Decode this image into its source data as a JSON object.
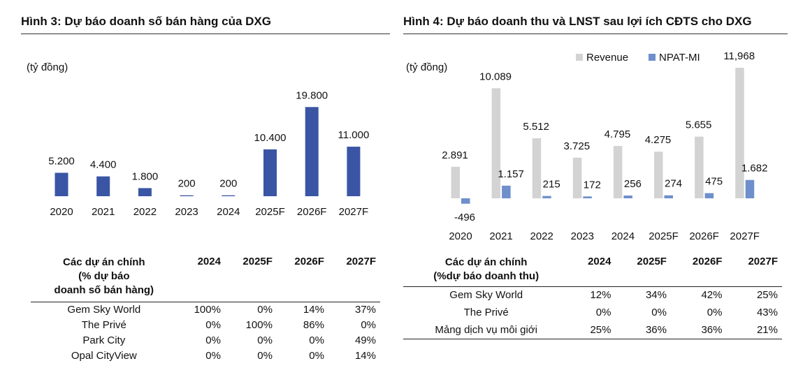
{
  "left": {
    "title": "Hình 3: Dự báo doanh số bán hàng của DXG",
    "unit": "(tỷ đồng)",
    "chart_data": {
      "type": "bar",
      "title": "Hình 3: Dự báo doanh số bán hàng của DXG",
      "ylabel": "(tỷ đồng)",
      "categories": [
        "2020",
        "2021",
        "2022",
        "2023",
        "2024",
        "2025F",
        "2026F",
        "2027F"
      ],
      "values": [
        5200,
        4400,
        1800,
        200,
        200,
        10400,
        19800,
        11000
      ],
      "labels": [
        "5.200",
        "4.400",
        "1.800",
        "200",
        "200",
        "10.400",
        "19.800",
        "11.000"
      ],
      "color": "#3a55a4",
      "ylim": [
        0,
        20000
      ],
      "grid": false
    },
    "table": {
      "headers": [
        "Các dự án chính",
        "(% dự báo",
        "doanh số bán hàng)",
        "2024",
        "2025F",
        "2026F",
        "2027F"
      ],
      "rows": [
        [
          "Gem Sky World",
          "100%",
          "0%",
          "14%",
          "37%"
        ],
        [
          "The Privé",
          "0%",
          "100%",
          "86%",
          "0%"
        ],
        [
          "Park City",
          "0%",
          "0%",
          "0%",
          "49%"
        ],
        [
          "Opal CityView",
          "0%",
          "0%",
          "0%",
          "14%"
        ]
      ]
    }
  },
  "right": {
    "title": "Hình 4: Dự báo doanh thu và LNST sau lợi ích CĐTS cho DXG",
    "unit": "(tỷ đồng)",
    "chart_data": {
      "type": "bar",
      "title": "Hình 4: Dự báo doanh thu và LNST sau lợi ích CĐTS cho DXG",
      "ylabel": "(tỷ đồng)",
      "categories": [
        "2020",
        "2021",
        "2022",
        "2023",
        "2024",
        "2025F",
        "2026F",
        "2027F"
      ],
      "legend_position": "top-right",
      "series": [
        {
          "name": "Revenue",
          "color": "#d3d3d3",
          "values": [
            2891,
            10089,
            5512,
            3725,
            4795,
            4275,
            5655,
            11968
          ],
          "labels": [
            "2.891",
            "10.089",
            "5.512",
            "3.725",
            "4.795",
            "4.275",
            "5.655",
            "11,968"
          ]
        },
        {
          "name": "NPAT-MI",
          "color": "#6e8fcb",
          "values": [
            -496,
            1157,
            215,
            172,
            256,
            274,
            475,
            1682
          ],
          "labels": [
            "-496",
            "1.157",
            "215",
            "172",
            "256",
            "274",
            "475",
            "1.682"
          ]
        }
      ],
      "ylim": [
        -496,
        11968
      ],
      "grid": false
    },
    "table": {
      "headers": [
        "Các dự án chính",
        "(%dự báo doanh thu)",
        "2024",
        "2025F",
        "2026F",
        "2027F"
      ],
      "rows": [
        [
          "Gem Sky World",
          "12%",
          "34%",
          "42%",
          "25%"
        ],
        [
          "The Privé",
          "0%",
          "0%",
          "0%",
          "43%"
        ],
        [
          "Mảng dịch vụ môi giới",
          "25%",
          "36%",
          "36%",
          "21%"
        ]
      ]
    }
  }
}
